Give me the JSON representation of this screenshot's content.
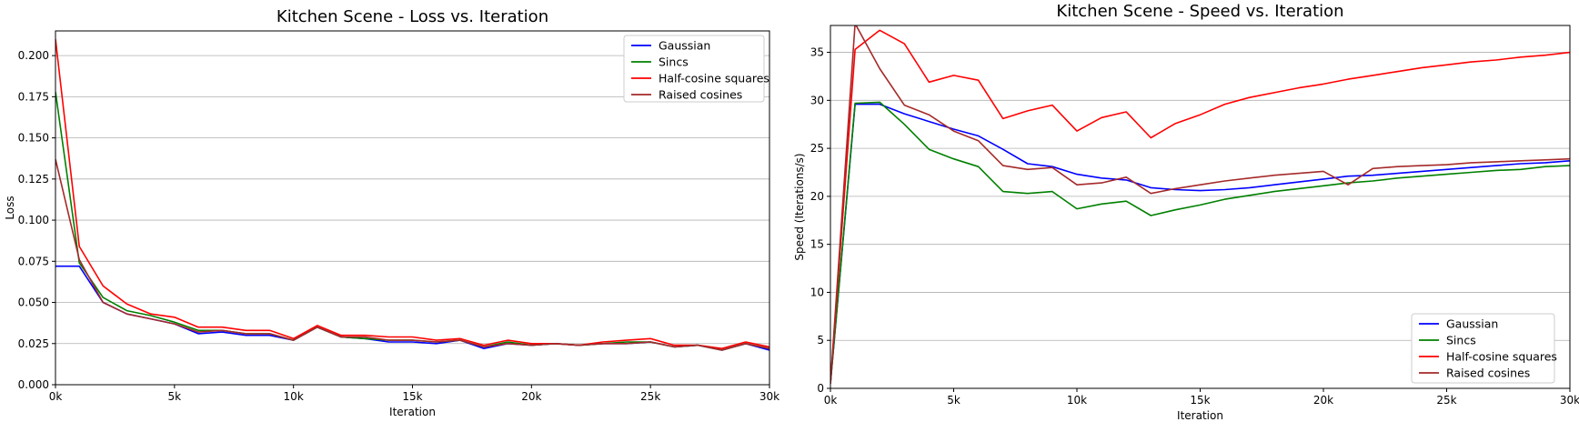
{
  "chart_data": [
    {
      "type": "line",
      "title": "Kitchen Scene - Loss vs. Iteration",
      "xlabel": "Iteration",
      "ylabel": "Loss",
      "xlim": [
        0,
        30000
      ],
      "ylim": [
        0,
        0.215
      ],
      "xticks": [
        0,
        5000,
        10000,
        15000,
        20000,
        25000,
        30000
      ],
      "xtick_labels": [
        "0k",
        "5k",
        "10k",
        "15k",
        "20k",
        "25k",
        "30k"
      ],
      "yticks": [
        0,
        0.025,
        0.05,
        0.075,
        0.1,
        0.125,
        0.15,
        0.175,
        0.2
      ],
      "ytick_labels": [
        "0.000",
        "0.025",
        "0.050",
        "0.075",
        "0.100",
        "0.125",
        "0.150",
        "0.175",
        "0.200"
      ],
      "grid": "horizontal",
      "legend_position": "top-right",
      "x": [
        0,
        1000,
        2000,
        3000,
        4000,
        5000,
        6000,
        7000,
        8000,
        9000,
        10000,
        11000,
        12000,
        13000,
        14000,
        15000,
        16000,
        17000,
        18000,
        19000,
        20000,
        21000,
        22000,
        23000,
        24000,
        25000,
        26000,
        27000,
        28000,
        29000,
        30000
      ],
      "series": [
        {
          "name": "Gaussian",
          "color": "#0000ff",
          "values": [
            0.072,
            0.072,
            0.05,
            0.043,
            0.04,
            0.037,
            0.031,
            0.032,
            0.03,
            0.03,
            0.027,
            0.035,
            0.029,
            0.028,
            0.026,
            0.026,
            0.025,
            0.027,
            0.022,
            0.025,
            0.024,
            0.025,
            0.024,
            0.025,
            0.025,
            0.026,
            0.023,
            0.024,
            0.021,
            0.025,
            0.021
          ]
        },
        {
          "name": "Sincs",
          "color": "#008000",
          "values": [
            0.178,
            0.074,
            0.053,
            0.045,
            0.042,
            0.038,
            0.033,
            0.033,
            0.031,
            0.031,
            0.027,
            0.035,
            0.029,
            0.028,
            0.027,
            0.027,
            0.026,
            0.027,
            0.023,
            0.026,
            0.024,
            0.025,
            0.024,
            0.025,
            0.026,
            0.026,
            0.023,
            0.024,
            0.021,
            0.025,
            0.022
          ]
        },
        {
          "name": "Half-cosine squares",
          "color": "#ff0000",
          "values": [
            0.21,
            0.084,
            0.06,
            0.049,
            0.043,
            0.041,
            0.035,
            0.035,
            0.033,
            0.033,
            0.028,
            0.036,
            0.03,
            0.03,
            0.029,
            0.029,
            0.027,
            0.028,
            0.024,
            0.027,
            0.025,
            0.025,
            0.024,
            0.026,
            0.027,
            0.028,
            0.024,
            0.024,
            0.022,
            0.026,
            0.023
          ]
        },
        {
          "name": "Raised cosines",
          "color": "#a52a2a",
          "values": [
            0.137,
            0.076,
            0.05,
            0.043,
            0.04,
            0.037,
            0.032,
            0.033,
            0.031,
            0.031,
            0.027,
            0.035,
            0.029,
            0.029,
            0.027,
            0.027,
            0.026,
            0.027,
            0.023,
            0.025,
            0.024,
            0.025,
            0.024,
            0.025,
            0.025,
            0.026,
            0.023,
            0.024,
            0.021,
            0.025,
            0.022
          ]
        }
      ]
    },
    {
      "type": "line",
      "title": "Kitchen Scene - Speed vs. Iteration",
      "xlabel": "Iteration",
      "ylabel": "Speed (Iterations/s)",
      "xlim": [
        0,
        30000
      ],
      "ylim": [
        0,
        37.8
      ],
      "xticks": [
        0,
        5000,
        10000,
        15000,
        20000,
        25000,
        30000
      ],
      "xtick_labels": [
        "0k",
        "5k",
        "10k",
        "15k",
        "20k",
        "25k",
        "30k"
      ],
      "yticks": [
        0,
        5,
        10,
        15,
        20,
        25,
        30,
        35
      ],
      "ytick_labels": [
        "0",
        "5",
        "10",
        "15",
        "20",
        "25",
        "30",
        "35"
      ],
      "grid": "horizontal",
      "legend_position": "bottom-right",
      "x": [
        0,
        1000,
        2000,
        3000,
        4000,
        5000,
        6000,
        7000,
        8000,
        9000,
        10000,
        11000,
        12000,
        13000,
        14000,
        15000,
        16000,
        17000,
        18000,
        19000,
        20000,
        21000,
        22000,
        23000,
        24000,
        25000,
        26000,
        27000,
        28000,
        29000,
        30000
      ],
      "series": [
        {
          "name": "Gaussian",
          "color": "#0000ff",
          "values": [
            0.5,
            29.6,
            29.6,
            28.6,
            27.8,
            27.0,
            26.3,
            24.9,
            23.4,
            23.1,
            22.3,
            21.9,
            21.7,
            20.9,
            20.7,
            20.6,
            20.7,
            20.9,
            21.2,
            21.5,
            21.8,
            22.1,
            22.2,
            22.4,
            22.6,
            22.8,
            23.0,
            23.2,
            23.4,
            23.5,
            23.7
          ]
        },
        {
          "name": "Sincs",
          "color": "#008000",
          "values": [
            0.5,
            29.7,
            29.8,
            27.5,
            24.9,
            23.9,
            23.1,
            20.5,
            20.3,
            20.5,
            18.7,
            19.2,
            19.5,
            18.0,
            18.6,
            19.1,
            19.7,
            20.1,
            20.5,
            20.8,
            21.1,
            21.4,
            21.6,
            21.9,
            22.1,
            22.3,
            22.5,
            22.7,
            22.8,
            23.1,
            23.2
          ]
        },
        {
          "name": "Half-cosine squares",
          "color": "#ff0000",
          "values": [
            0.5,
            35.3,
            37.3,
            35.9,
            31.9,
            32.6,
            32.1,
            28.1,
            28.9,
            29.5,
            26.8,
            28.2,
            28.8,
            26.1,
            27.6,
            28.5,
            29.6,
            30.3,
            30.8,
            31.3,
            31.7,
            32.2,
            32.6,
            33.0,
            33.4,
            33.7,
            34.0,
            34.2,
            34.5,
            34.7,
            35.0
          ]
        },
        {
          "name": "Raised cosines",
          "color": "#a52a2a",
          "values": [
            0.5,
            38.0,
            33.3,
            29.5,
            28.5,
            26.8,
            25.8,
            23.2,
            22.8,
            23.0,
            21.2,
            21.4,
            22.0,
            20.3,
            20.8,
            21.2,
            21.6,
            21.9,
            22.2,
            22.4,
            22.6,
            21.2,
            22.9,
            23.1,
            23.2,
            23.3,
            23.5,
            23.6,
            23.7,
            23.8,
            23.9
          ]
        }
      ]
    }
  ]
}
